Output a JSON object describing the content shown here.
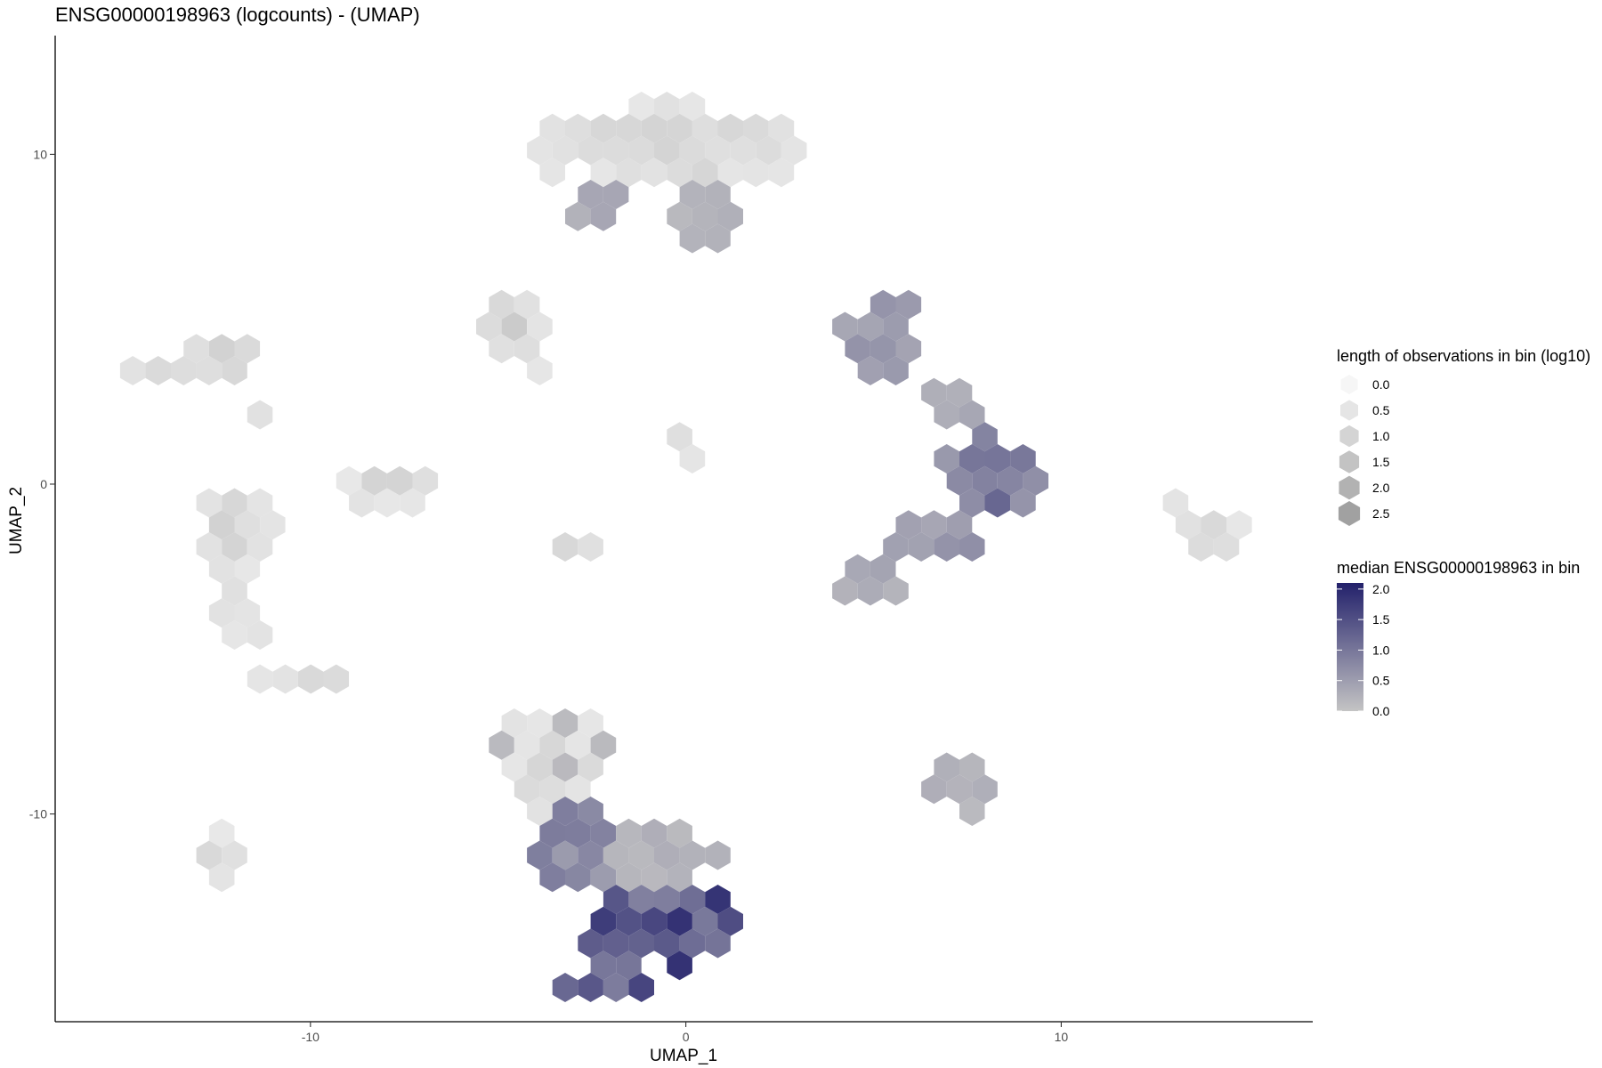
{
  "chart_data": {
    "type": "hexbin",
    "title": "ENSG00000198963 (logcounts) - (UMAP)",
    "xlabel": "UMAP_1",
    "ylabel": "UMAP_2",
    "xlim": [
      -16.8,
      16.7
    ],
    "ylim": [
      -16.3,
      13.6
    ],
    "x_ticks": [
      -10,
      0,
      10
    ],
    "x_tick_labels": [
      "-10",
      "0",
      "10"
    ],
    "y_ticks": [
      10,
      0,
      -10
    ],
    "y_tick_labels": [
      "10",
      "0",
      "-10"
    ],
    "grid": false,
    "legend_position": "right",
    "size_legend": {
      "title": "length of observations in bin (log10)",
      "levels": [
        0.0,
        0.5,
        1.0,
        1.5,
        2.0,
        2.5
      ],
      "labels": [
        "0.0",
        "0.5",
        "1.0",
        "1.5",
        "2.0",
        "2.5"
      ]
    },
    "color_legend": {
      "title": "median ENSG00000198963 in bin",
      "min": 0.0,
      "max": 2.1,
      "ticks": [
        2.0,
        1.5,
        1.0,
        0.5,
        0.0
      ],
      "tick_labels": [
        "2.0",
        "1.5",
        "1.0",
        "0.5",
        "0.0"
      ],
      "low_color": "#c4c4c4",
      "high_color": "#23216b"
    },
    "clusters": [
      {
        "cx": -0.5,
        "cy": 10.2,
        "rx": 3.8,
        "ry": 1.3,
        "dens": 1.1,
        "expr": 0.05
      },
      {
        "cx": 0.5,
        "cy": 8.3,
        "rx": 1.3,
        "ry": 1.1,
        "dens": 0.4,
        "expr": 0.2
      },
      {
        "cx": -2.2,
        "cy": 8.1,
        "rx": 0.8,
        "ry": 0.9,
        "dens": 0.5,
        "expr": 0.3
      },
      {
        "cx": 5.3,
        "cy": 4.2,
        "rx": 1.2,
        "ry": 1.5,
        "dens": 0.7,
        "expr": 0.5
      },
      {
        "cx": 7.0,
        "cy": 2.6,
        "rx": 0.9,
        "ry": 0.8,
        "dens": 0.6,
        "expr": 0.4
      },
      {
        "cx": 8.2,
        "cy": 0.4,
        "rx": 1.6,
        "ry": 1.2,
        "dens": 1.1,
        "expr": 0.9
      },
      {
        "cx": 6.6,
        "cy": -1.6,
        "rx": 1.4,
        "ry": 1.0,
        "dens": 1.0,
        "expr": 0.6
      },
      {
        "cx": 5.0,
        "cy": -3.0,
        "rx": 1.1,
        "ry": 0.6,
        "dens": 1.2,
        "expr": 0.3
      },
      {
        "cx": 14.2,
        "cy": -1.7,
        "rx": 1.1,
        "ry": 0.8,
        "dens": 1.1,
        "expr": 0.0
      },
      {
        "cx": 13.2,
        "cy": -0.3,
        "rx": 0.5,
        "ry": 0.4,
        "dens": 0.5,
        "expr": 0.0
      },
      {
        "cx": 7.4,
        "cy": -9.2,
        "rx": 1.2,
        "ry": 0.8,
        "dens": 1.0,
        "expr": 0.2
      },
      {
        "cx": 0.0,
        "cy": 1.2,
        "rx": 0.5,
        "ry": 0.6,
        "dens": 1.0,
        "expr": 0.0
      },
      {
        "cx": -4.6,
        "cy": 4.8,
        "rx": 0.9,
        "ry": 0.9,
        "dens": 1.2,
        "expr": 0.0
      },
      {
        "cx": -3.6,
        "cy": 3.6,
        "rx": 0.5,
        "ry": 0.5,
        "dens": 0.6,
        "expr": 0.0
      },
      {
        "cx": -12.5,
        "cy": 3.8,
        "rx": 1.2,
        "ry": 0.8,
        "dens": 1.1,
        "expr": 0.0
      },
      {
        "cx": -14.3,
        "cy": 3.4,
        "rx": 0.6,
        "ry": 0.4,
        "dens": 0.8,
        "expr": 0.0
      },
      {
        "cx": -11.3,
        "cy": 2.2,
        "rx": 0.6,
        "ry": 0.5,
        "dens": 0.6,
        "expr": 0.0
      },
      {
        "cx": -8.0,
        "cy": 0.0,
        "rx": 1.3,
        "ry": 0.7,
        "dens": 1.0,
        "expr": 0.0
      },
      {
        "cx": -12.0,
        "cy": -1.5,
        "rx": 1.1,
        "ry": 1.4,
        "dens": 1.1,
        "expr": 0.0
      },
      {
        "cx": -11.9,
        "cy": -4.0,
        "rx": 0.8,
        "ry": 1.0,
        "dens": 0.9,
        "expr": 0.0
      },
      {
        "cx": -11.0,
        "cy": -6.0,
        "rx": 0.6,
        "ry": 0.6,
        "dens": 0.6,
        "expr": 0.0
      },
      {
        "cx": -10.0,
        "cy": -6.1,
        "rx": 1.2,
        "ry": 0.4,
        "dens": 1.2,
        "expr": 0.0
      },
      {
        "cx": -3.1,
        "cy": -2.0,
        "rx": 0.6,
        "ry": 0.5,
        "dens": 1.1,
        "expr": 0.0
      },
      {
        "cx": -12.5,
        "cy": -11.2,
        "rx": 0.7,
        "ry": 1.1,
        "dens": 0.9,
        "expr": 0.0
      },
      {
        "cx": -3.5,
        "cy": -8.5,
        "rx": 1.6,
        "ry": 1.7,
        "dens": 1.0,
        "expr": 0.1
      },
      {
        "cx": -2.9,
        "cy": -10.9,
        "rx": 1.2,
        "ry": 1.3,
        "dens": 0.8,
        "expr": 0.7
      },
      {
        "cx": -0.8,
        "cy": -11.2,
        "rx": 1.8,
        "ry": 1.0,
        "dens": 0.8,
        "expr": 0.2
      },
      {
        "cx": -0.8,
        "cy": -13.3,
        "rx": 2.4,
        "ry": 1.5,
        "dens": 0.9,
        "expr": 1.4
      },
      {
        "cx": -2.2,
        "cy": -15.0,
        "rx": 1.5,
        "ry": 0.5,
        "dens": 0.9,
        "expr": 1.2
      }
    ],
    "hotspots": [
      {
        "cx": -3.3,
        "cy": -12.3,
        "rad": 0.5,
        "expr": 2.0
      },
      {
        "cx": 0.0,
        "cy": -13.6,
        "rad": 0.5,
        "expr": 2.0
      },
      {
        "cx": 8.7,
        "cy": 0.6,
        "rad": 0.8,
        "expr": 1.3
      }
    ]
  }
}
